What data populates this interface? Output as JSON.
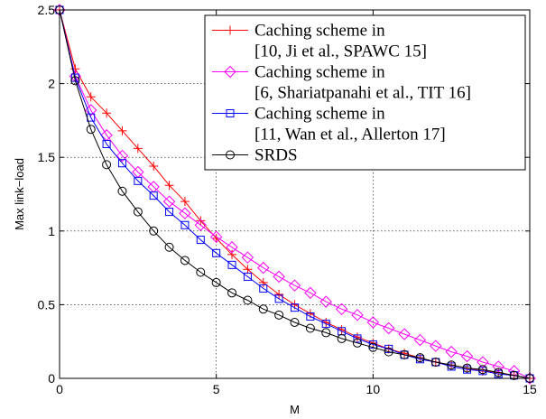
{
  "chart_data": {
    "type": "line",
    "xlabel": "M",
    "ylabel": "Max link−load",
    "xlim": [
      0,
      15
    ],
    "ylim": [
      0,
      2.5
    ],
    "xticks": [
      0,
      5,
      10,
      15
    ],
    "yticks": [
      0,
      0.5,
      1,
      1.5,
      2,
      2.5
    ],
    "xtick_labels": [
      "0",
      "5",
      "10",
      "15"
    ],
    "ytick_labels": [
      "0",
      "0.5",
      "1",
      "1.5",
      "2",
      "2.5"
    ],
    "grid": true,
    "legend_position": "top-right",
    "series": [
      {
        "name": "Caching scheme in [10, Ji et al., SPAWC 15]",
        "name_lines": [
          "Caching scheme in",
          "[10, Ji et al., SPAWC 15]"
        ],
        "color": "#ff0000",
        "marker": "plus",
        "x": [
          0,
          0.5,
          1,
          1.5,
          2,
          2.5,
          3,
          3.5,
          4,
          4.5,
          5,
          5.5,
          6,
          6.5,
          7,
          7.5,
          8,
          8.5,
          9,
          9.5,
          10,
          10.5,
          11,
          11.5,
          12,
          12.5,
          13,
          13.5,
          14,
          14.5,
          15
        ],
        "y": [
          2.5,
          2.1,
          1.91,
          1.8,
          1.68,
          1.56,
          1.44,
          1.31,
          1.2,
          1.07,
          0.95,
          0.84,
          0.74,
          0.65,
          0.57,
          0.5,
          0.44,
          0.38,
          0.33,
          0.28,
          0.24,
          0.2,
          0.17,
          0.14,
          0.11,
          0.09,
          0.07,
          0.05,
          0.04,
          0.02,
          0
        ]
      },
      {
        "name": "Caching scheme in [6, Shariatpanahi et al., TIT 16]",
        "name_lines": [
          "Caching scheme in",
          "[6, Shariatpanahi et al., TIT 16]"
        ],
        "color": "#ff00ff",
        "marker": "diamond",
        "x": [
          0,
          0.5,
          1,
          1.5,
          2,
          2.5,
          3,
          3.5,
          4,
          4.5,
          5,
          5.5,
          6,
          6.5,
          7,
          7.5,
          8,
          8.5,
          9,
          9.5,
          10,
          10.5,
          11,
          11.5,
          12,
          12.5,
          13,
          13.5,
          14,
          14.5,
          15
        ],
        "y": [
          2.5,
          2.05,
          1.82,
          1.65,
          1.51,
          1.4,
          1.3,
          1.2,
          1.12,
          1.04,
          0.96,
          0.89,
          0.82,
          0.75,
          0.69,
          0.63,
          0.58,
          0.52,
          0.47,
          0.43,
          0.38,
          0.34,
          0.3,
          0.26,
          0.22,
          0.18,
          0.15,
          0.11,
          0.08,
          0.05,
          0
        ]
      },
      {
        "name": "Caching scheme in [11, Wan et al., Allerton 17]",
        "name_lines": [
          "Caching scheme in",
          "[11, Wan et al., Allerton 17]"
        ],
        "color": "#0000ff",
        "marker": "square",
        "x": [
          0,
          0.5,
          1,
          1.5,
          2,
          2.5,
          3,
          3.5,
          4,
          4.5,
          5,
          5.5,
          6,
          6.5,
          7,
          7.5,
          8,
          8.5,
          9,
          9.5,
          10,
          10.5,
          11,
          11.5,
          12,
          12.5,
          13,
          13.5,
          14,
          14.5,
          15
        ],
        "y": [
          2.5,
          2.04,
          1.77,
          1.59,
          1.46,
          1.34,
          1.24,
          1.13,
          1.04,
          0.94,
          0.85,
          0.77,
          0.69,
          0.61,
          0.54,
          0.48,
          0.42,
          0.37,
          0.32,
          0.27,
          0.23,
          0.2,
          0.16,
          0.13,
          0.11,
          0.08,
          0.06,
          0.05,
          0.03,
          0.02,
          0
        ]
      },
      {
        "name": "SRDS",
        "name_lines": [
          "SRDS"
        ],
        "color": "#000000",
        "marker": "circle",
        "x": [
          0,
          0.5,
          1,
          1.5,
          2,
          2.5,
          3,
          3.5,
          4,
          4.5,
          5,
          5.5,
          6,
          6.5,
          7,
          7.5,
          8,
          8.5,
          9,
          9.5,
          10,
          10.5,
          11,
          11.5,
          12,
          12.5,
          13,
          13.5,
          14,
          14.5,
          15
        ],
        "y": [
          2.5,
          2.02,
          1.69,
          1.45,
          1.27,
          1.13,
          1.0,
          0.89,
          0.8,
          0.72,
          0.65,
          0.58,
          0.53,
          0.47,
          0.43,
          0.38,
          0.34,
          0.31,
          0.27,
          0.24,
          0.21,
          0.18,
          0.16,
          0.14,
          0.11,
          0.09,
          0.07,
          0.06,
          0.04,
          0.02,
          0
        ]
      }
    ]
  }
}
